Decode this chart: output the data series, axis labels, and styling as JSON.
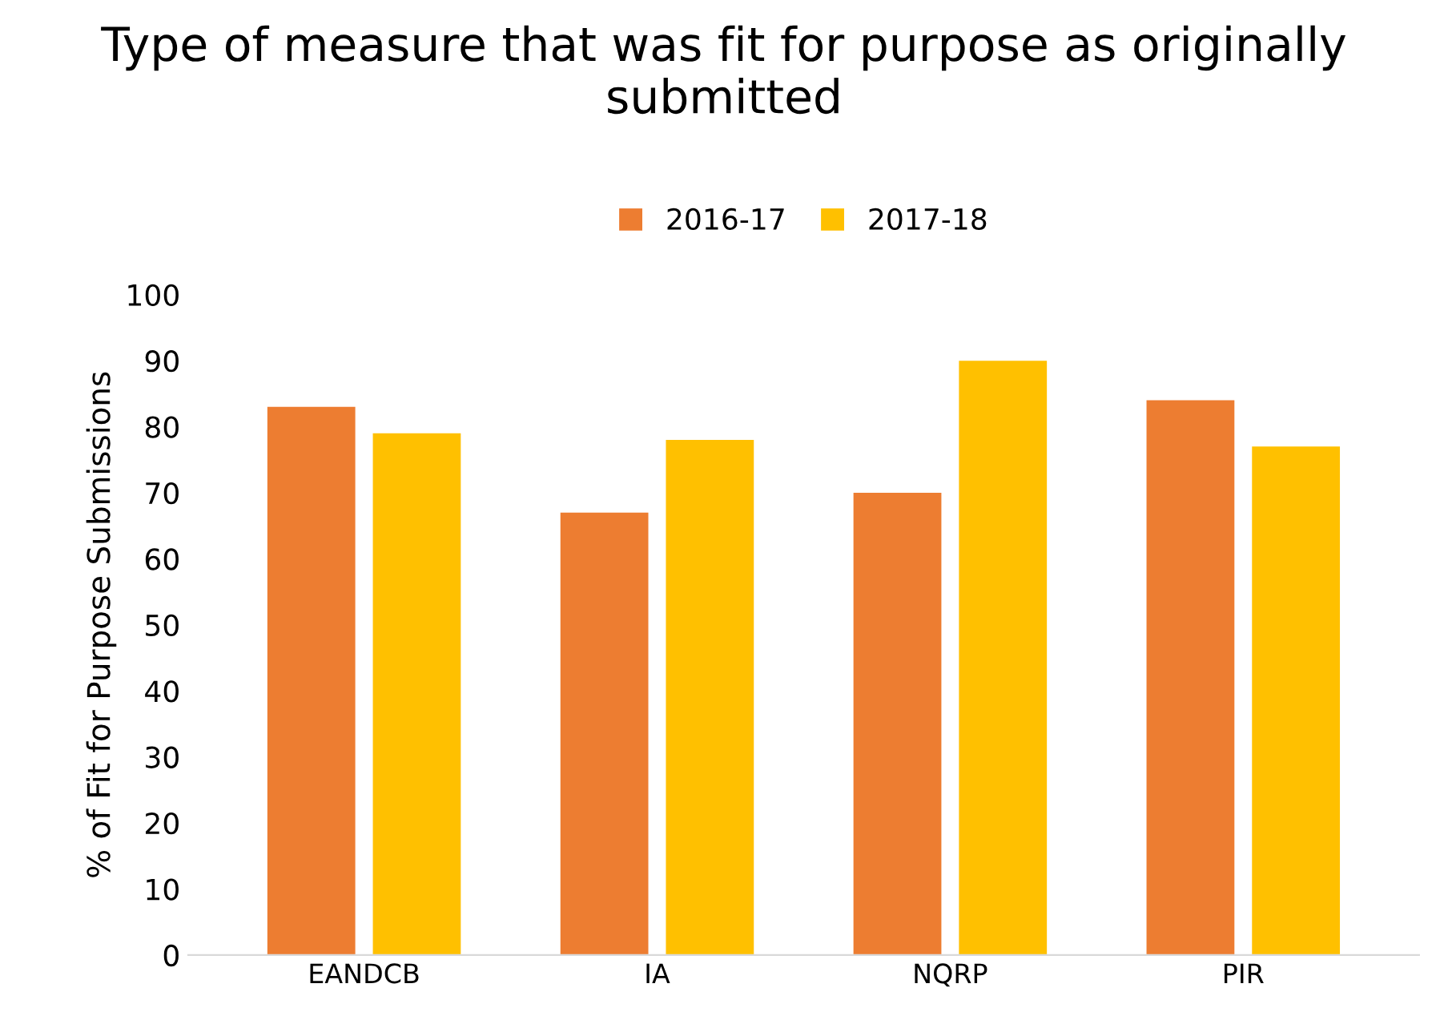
{
  "chart_data": {
    "type": "bar",
    "title": "Type of measure that was fit for purpose as originally submitted",
    "ylabel": "% of Fit for Purpose Submissions",
    "categories": [
      "EANDCB",
      "IA",
      "NQRP",
      "PIR"
    ],
    "series": [
      {
        "name": "2016-17",
        "color": "#ed7d31",
        "values": [
          83,
          67,
          70,
          84
        ]
      },
      {
        "name": "2017-18",
        "color": "#ffc000",
        "values": [
          79,
          78,
          90,
          77
        ]
      }
    ],
    "ylim": [
      0,
      100
    ],
    "yticks": [
      0,
      10,
      20,
      30,
      40,
      50,
      60,
      70,
      80,
      90,
      100
    ],
    "grid": false,
    "legend": "top"
  }
}
